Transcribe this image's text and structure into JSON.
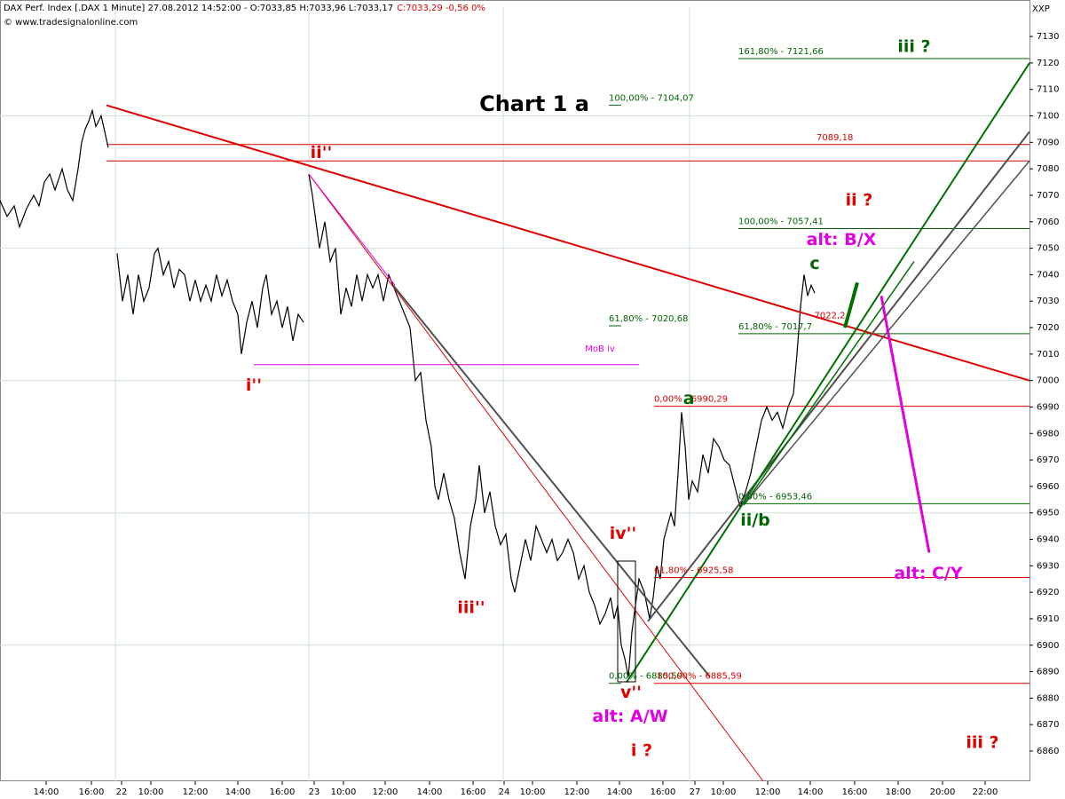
{
  "chart_data": {
    "type": "line",
    "header": "DAX Perf. Index [.DAX  1 Minute] 27.08.2012 14:52:00 - O:7033,85 H:7033,96 L:7033,17",
    "header_change": "C:7033,29 -0,56 0%",
    "header_change_color": "#e00000",
    "copyright": "© www.tradesignalonline.com",
    "corner_label": "XXP",
    "title": "Chart 1 a",
    "color": "#000000",
    "xlim": [
      0,
      1160
    ],
    "ylim": [
      6848.6,
      7141.1
    ],
    "yticks": [
      6860,
      6870,
      6880,
      6890,
      6900,
      6910,
      6920,
      6930,
      6940,
      6950,
      6960,
      6970,
      6980,
      6990,
      7000,
      7010,
      7020,
      7030,
      7040,
      7050,
      7060,
      7070,
      7080,
      7090,
      7100,
      7110,
      7120,
      7130
    ],
    "ygrid": [
      6900,
      6950,
      7000,
      7050,
      7100
    ],
    "xgrid": [
      130,
      348,
      567,
      777
    ],
    "xticks": [
      {
        "value": 52,
        "label": "14:00"
      },
      {
        "value": 103,
        "label": "16:00"
      },
      {
        "value": 137,
        "label": "22"
      },
      {
        "value": 170,
        "label": "10:00"
      },
      {
        "value": 220,
        "label": "12:00"
      },
      {
        "value": 268,
        "label": "14:00"
      },
      {
        "value": 318,
        "label": "16:00"
      },
      {
        "value": 354,
        "label": "23"
      },
      {
        "value": 387,
        "label": "10:00"
      },
      {
        "value": 434,
        "label": "12:00"
      },
      {
        "value": 484,
        "label": "14:00"
      },
      {
        "value": 533,
        "label": "16:00"
      },
      {
        "value": 568,
        "label": "24"
      },
      {
        "value": 600,
        "label": "10:00"
      },
      {
        "value": 650,
        "label": "12:00"
      },
      {
        "value": 698,
        "label": "14:00"
      },
      {
        "value": 747,
        "label": "16:00"
      },
      {
        "value": 783,
        "label": "27"
      },
      {
        "value": 815,
        "label": "10:00"
      },
      {
        "value": 865,
        "label": "12:00"
      },
      {
        "value": 913,
        "label": "14:00"
      },
      {
        "value": 963,
        "label": "16:00"
      },
      {
        "value": 1012,
        "label": "18:00"
      },
      {
        "value": 1062,
        "label": "20:00"
      },
      {
        "value": 1110,
        "label": "22:00"
      }
    ],
    "x": [
      0,
      8,
      16,
      22,
      30,
      38,
      44,
      50,
      56,
      62,
      70,
      76,
      82,
      88,
      92,
      96,
      100,
      104,
      108,
      114,
      118,
      122,
      127,
      132,
      138,
      144,
      150,
      156,
      162,
      168,
      174,
      178,
      184,
      190,
      196,
      202,
      208,
      214,
      220,
      226,
      232,
      238,
      244,
      250,
      256,
      262,
      268,
      272,
      278,
      284,
      290,
      296,
      300,
      306,
      312,
      318,
      324,
      330,
      336,
      342,
      345,
      348,
      352,
      356,
      360,
      366,
      372,
      378,
      384,
      390,
      396,
      402,
      408,
      414,
      420,
      426,
      432,
      438,
      444,
      450,
      456,
      462,
      468,
      474,
      480,
      486,
      490,
      494,
      500,
      506,
      512,
      518,
      524,
      530,
      536,
      540,
      546,
      552,
      558,
      564,
      570,
      576,
      580,
      586,
      592,
      598,
      604,
      610,
      616,
      622,
      628,
      634,
      640,
      646,
      652,
      658,
      664,
      670,
      676,
      682,
      688,
      692,
      696,
      700,
      704,
      708,
      712,
      716,
      720,
      726,
      732,
      736,
      740,
      744,
      748,
      752,
      756,
      760,
      764,
      768,
      772,
      776,
      780,
      786,
      792,
      798,
      804,
      810,
      816,
      822,
      828,
      834,
      840,
      846,
      852,
      858,
      864,
      870,
      876,
      882,
      888,
      894,
      898,
      902,
      906,
      910,
      914,
      918
    ],
    "values": [
      7068,
      7062,
      7066,
      7058,
      7065,
      7070,
      7066,
      7075,
      7078,
      7072,
      7080,
      7072,
      7068,
      7080,
      7090,
      7095,
      7098,
      7102,
      7096,
      7100,
      7094,
      7088,
      null,
      7048,
      7030,
      7040,
      7025,
      7040,
      7030,
      7035,
      7048,
      7050,
      7040,
      7045,
      7035,
      7042,
      7040,
      7030,
      7038,
      7030,
      7036,
      7030,
      7040,
      7032,
      7038,
      7030,
      7025,
      7010,
      7022,
      7030,
      7020,
      7035,
      7040,
      7025,
      7030,
      7020,
      7028,
      7015,
      7025,
      7022,
      null,
      7078,
      7070,
      7060,
      7050,
      7060,
      7045,
      7050,
      7025,
      7035,
      7028,
      7040,
      7030,
      7040,
      7035,
      7040,
      7030,
      7040,
      7035,
      7030,
      7025,
      7020,
      7000,
      7003,
      6985,
      6975,
      6960,
      6955,
      6965,
      6955,
      6948,
      6935,
      6925,
      6945,
      6955,
      6968,
      6950,
      6958,
      6945,
      6938,
      6942,
      6925,
      6920,
      6930,
      6940,
      6932,
      6945,
      6940,
      6935,
      6940,
      6932,
      6935,
      6940,
      6935,
      6925,
      6930,
      6920,
      6915,
      6908,
      6912,
      6918,
      6910,
      6915,
      6900,
      6895,
      6888,
      6905,
      6915,
      6925,
      6920,
      6910,
      6918,
      6930,
      6925,
      6940,
      6945,
      6950,
      6945,
      6965,
      6988,
      6975,
      6955,
      6962,
      6958,
      6972,
      6965,
      6978,
      6975,
      6970,
      6968,
      6960,
      6952,
      6958,
      6965,
      6975,
      6985,
      6990,
      6985,
      6988,
      6982,
      6990,
      6995,
      7010,
      7028,
      7040,
      7032,
      7036,
      7033
    ],
    "levels": [
      {
        "label": "161,80% - 7121,66",
        "value": 7121.66,
        "x0": 832,
        "x1": 1160,
        "label_x": 832,
        "color": "#006400"
      },
      {
        "label": "100,00% - 7057,41",
        "value": 7057.41,
        "x0": 832,
        "x1": 1160,
        "label_x": 832,
        "color": "#006400"
      },
      {
        "label": "61,80% - 7017,7",
        "value": 7017.7,
        "x0": 832,
        "x1": 1160,
        "label_x": 832,
        "color": "#006400"
      },
      {
        "label": "0,00% - 6953,46",
        "value": 6953.46,
        "x0": 832,
        "x1": 1160,
        "label_x": 832,
        "color": "#006400"
      },
      {
        "label": "100,00% - 7104,07",
        "value": 7104.07,
        "x0": 686,
        "x1": 700,
        "label_x": 686,
        "color": "#006400"
      },
      {
        "label": "61,80% - 7020,68",
        "value": 7020.68,
        "x0": 686,
        "x1": 700,
        "label_x": 686,
        "color": "#006400"
      },
      {
        "label": "0,00% - 6885,59",
        "value": 6885.59,
        "x0": 686,
        "x1": 700,
        "label_x": 686,
        "color": "#006400"
      },
      {
        "label": "0,00% - 6990,29",
        "value": 6990.29,
        "x0": 737,
        "x1": 1160,
        "label_x": 737,
        "color": "#e00000"
      },
      {
        "label": "61,80% - 6925,58",
        "value": 6925.58,
        "x0": 737,
        "x1": 1160,
        "label_x": 737,
        "color": "#e00000"
      },
      {
        "label": "100,00% - 6885,59",
        "value": 6885.59,
        "x0": 737,
        "x1": 1160,
        "label_x": 740,
        "color": "#e00000"
      },
      {
        "label": "7089,18",
        "value": 7089.18,
        "x0": 120,
        "x1": 1160,
        "label_x": 920,
        "color": "#e00000"
      }
    ],
    "plain_levels": [
      {
        "value": 7083,
        "x0": 120,
        "x1": 1160,
        "color": "#e00000"
      },
      {
        "value": 7006,
        "x0": 286,
        "x1": 720,
        "color": "#e000e0"
      }
    ],
    "trend_lines": [
      {
        "points": [
          [
            120,
            7104
          ],
          [
            1160,
            7000
          ]
        ],
        "color": "#e00000",
        "width": 2
      },
      {
        "points": [
          [
            348,
            7078
          ],
          [
            860,
            6848.6
          ]
        ],
        "color": "#e00000",
        "width": 1
      },
      {
        "points": [
          [
            348,
            7078
          ],
          [
            445,
            7036
          ]
        ],
        "color": "#e000e0",
        "width": 1
      },
      {
        "points": [
          [
            443,
            7036
          ],
          [
            800,
            6888
          ]
        ],
        "color": "#505050",
        "width": 2
      },
      {
        "points": [
          [
            730,
            6909
          ],
          [
            1160,
            7094
          ]
        ],
        "color": "#505050",
        "width": 2
      },
      {
        "points": [
          [
            838,
            6953
          ],
          [
            1160,
            7083
          ]
        ],
        "color": "#505050",
        "width": 1.5
      },
      {
        "points": [
          [
            706,
            6886
          ],
          [
            1160,
            7120
          ]
        ],
        "color": "#007000",
        "width": 2
      },
      {
        "points": [
          [
            838,
            6953
          ],
          [
            1030,
            7045
          ]
        ],
        "color": "#007000",
        "width": 1.5
      },
      {
        "points": [
          [
            952,
            7020
          ],
          [
            966,
            7037
          ]
        ],
        "color": "#007000",
        "width": 4
      },
      {
        "points": [
          [
            993,
            7032
          ],
          [
            1047,
            6935
          ]
        ],
        "color": "#e000e0",
        "width": 3
      }
    ],
    "wave_labels": [
      {
        "text": "iii ?",
        "x": 1030,
        "y": 7126,
        "color": "#006400"
      },
      {
        "text": "ii ?",
        "x": 968,
        "y": 7068,
        "color": "#e00000"
      },
      {
        "text": "alt: B/X",
        "x": 948,
        "y": 7053,
        "color": "#e000e0"
      },
      {
        "text": "c",
        "x": 918,
        "y": 7044,
        "color": "#006400"
      },
      {
        "text": "a",
        "x": 776,
        "y": 6993,
        "color": "#006400"
      },
      {
        "text": "ii/b",
        "x": 851,
        "y": 6947,
        "color": "#006400"
      },
      {
        "text": "iv''",
        "x": 702,
        "y": 6942,
        "color": "#e00000"
      },
      {
        "text": "v''",
        "x": 711,
        "y": 6882,
        "color": "#e00000"
      },
      {
        "text": "alt: A/W",
        "x": 710,
        "y": 6873,
        "color": "#e000e0"
      },
      {
        "text": "i ?",
        "x": 723,
        "y": 6860,
        "color": "#e00000"
      },
      {
        "text": "alt: C/Y",
        "x": 1046,
        "y": 6927,
        "color": "#e000e0"
      },
      {
        "text": "iii ?",
        "x": 1107,
        "y": 6863,
        "color": "#e00000"
      },
      {
        "text": "ii''",
        "x": 362,
        "y": 7086,
        "color": "#e00000"
      },
      {
        "text": "i''",
        "x": 286,
        "y": 6998,
        "color": "#e00000"
      },
      {
        "text": "iii''",
        "x": 531,
        "y": 6914,
        "color": "#e00000"
      }
    ],
    "notes": [
      {
        "text": "MoB iv",
        "x": 676,
        "y": 7012,
        "color": "#e000e0"
      },
      {
        "text": "7022,2",
        "x": 935,
        "y": 7024.5,
        "color": "#e00000"
      }
    ]
  }
}
